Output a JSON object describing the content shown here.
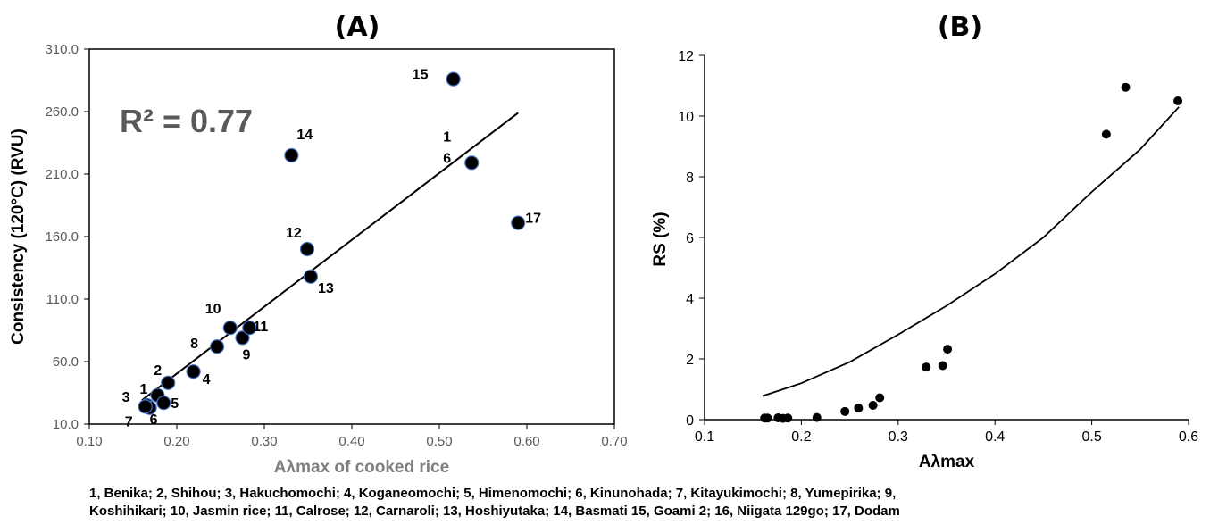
{
  "chart_data": [
    {
      "type": "scatter",
      "title": "(A)",
      "xlabel": "Aλmax of cooked rice",
      "ylabel": "Consistency (120°C) (RVU)",
      "xlim": [
        0.1,
        0.7
      ],
      "ylim": [
        10.0,
        310.0
      ],
      "x_ticks": [
        "0.10",
        "0.20",
        "0.30",
        "0.40",
        "0.50",
        "0.60",
        "0.70"
      ],
      "y_ticks": [
        "10.0",
        "60.0",
        "110.0",
        "160.0",
        "210.0",
        "260.0",
        "310.0"
      ],
      "annotation": "R² = 0.77",
      "trendline": {
        "x": [
          0.16,
          0.59
        ],
        "y": [
          29,
          259
        ]
      },
      "grid": false,
      "points": [
        {
          "label": "1",
          "x": 0.178,
          "y": 33
        },
        {
          "label": "2",
          "x": 0.19,
          "y": 43
        },
        {
          "label": "3",
          "x": 0.166,
          "y": 25
        },
        {
          "label": "4",
          "x": 0.219,
          "y": 52
        },
        {
          "label": "5",
          "x": 0.185,
          "y": 27
        },
        {
          "label": "6",
          "x": 0.169,
          "y": 23
        },
        {
          "label": "7",
          "x": 0.164,
          "y": 24
        },
        {
          "label": "8",
          "x": 0.246,
          "y": 72
        },
        {
          "label": "9",
          "x": 0.275,
          "y": 79
        },
        {
          "label": "10",
          "x": 0.261,
          "y": 87
        },
        {
          "label": "11",
          "x": 0.283,
          "y": 87
        },
        {
          "label": "12",
          "x": 0.349,
          "y": 150
        },
        {
          "label": "13",
          "x": 0.353,
          "y": 128
        },
        {
          "label": "14",
          "x": 0.331,
          "y": 225
        },
        {
          "label": "15",
          "x": 0.516,
          "y": 286
        },
        {
          "label": "16",
          "x": 0.537,
          "y": 219
        },
        {
          "label": "17",
          "x": 0.59,
          "y": 171
        }
      ]
    },
    {
      "type": "scatter",
      "title": "(B)",
      "xlabel": "Aλmax",
      "ylabel": "RS (%)",
      "xlim": [
        0.1,
        0.6
      ],
      "ylim": [
        0,
        12
      ],
      "x_ticks": [
        "0.1",
        "0.2",
        "0.3",
        "0.4",
        "0.5",
        "0.6"
      ],
      "y_ticks": [
        "0",
        "2",
        "4",
        "6",
        "8",
        "10",
        "12"
      ],
      "grid": false,
      "trendline": {
        "x": [
          0.16,
          0.2,
          0.25,
          0.3,
          0.35,
          0.4,
          0.45,
          0.5,
          0.55,
          0.59
        ],
        "y": [
          0.78,
          1.2,
          1.9,
          2.8,
          3.75,
          4.8,
          6.0,
          7.5,
          8.9,
          10.3
        ]
      },
      "points": [
        {
          "x": 0.162,
          "y": 0.05
        },
        {
          "x": 0.165,
          "y": 0.05
        },
        {
          "x": 0.176,
          "y": 0.06
        },
        {
          "x": 0.181,
          "y": 0.04
        },
        {
          "x": 0.186,
          "y": 0.05
        },
        {
          "x": 0.216,
          "y": 0.07
        },
        {
          "x": 0.245,
          "y": 0.27
        },
        {
          "x": 0.259,
          "y": 0.38
        },
        {
          "x": 0.274,
          "y": 0.47
        },
        {
          "x": 0.281,
          "y": 0.72
        },
        {
          "x": 0.329,
          "y": 1.73
        },
        {
          "x": 0.346,
          "y": 1.78
        },
        {
          "x": 0.351,
          "y": 2.32
        },
        {
          "x": 0.515,
          "y": 9.4
        },
        {
          "x": 0.535,
          "y": 10.95
        },
        {
          "x": 0.589,
          "y": 10.5
        }
      ]
    }
  ],
  "legend_lines": [
    "1, Benika; 2, Shihou; 3, Hakuchomochi; 4, Koganeomochi; 5, Himenomochi; 6, Kinunohada; 7, Kitayukimochi; 8, Yumepirika; 9,",
    "Koshihikari; 10, Jasmin rice; 11, Calrose; 12, Carnaroli; 13, Hoshiyutaka; 14, Basmati 15, Goami 2; 16, Niigata 129go; 17, Dodam"
  ],
  "colors": {
    "marker_fill": "#000000",
    "marker_edge_A": "#4472c4",
    "axis": "#000000",
    "tick_text_A": "#595959",
    "r2_text": "#595959",
    "xlabel_A": "#7f7f7f"
  }
}
